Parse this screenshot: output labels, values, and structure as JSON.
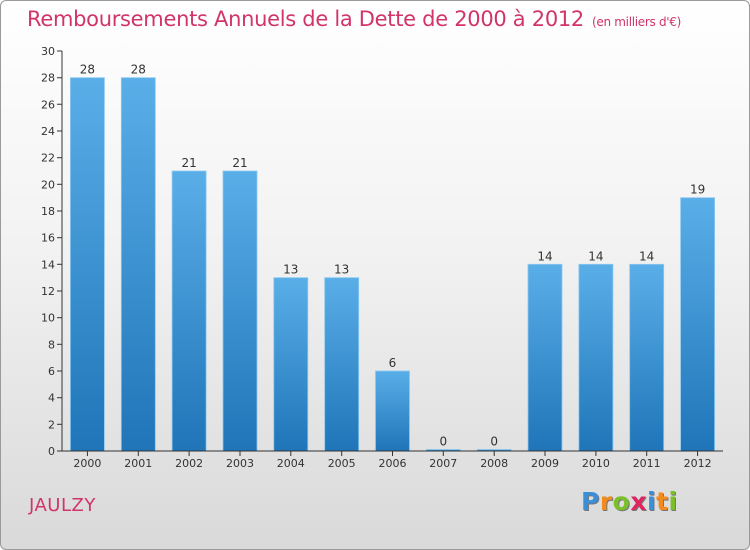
{
  "chart_data": {
    "type": "bar",
    "title": "Remboursements Annuels de la Dette de 2000 à 2012",
    "subtitle": "(en milliers d'€)",
    "categories": [
      "2000",
      "2001",
      "2002",
      "2003",
      "2004",
      "2005",
      "2006",
      "2007",
      "2008",
      "2009",
      "2010",
      "2011",
      "2012"
    ],
    "values": [
      28,
      28,
      21,
      21,
      13,
      13,
      6,
      0,
      0,
      14,
      14,
      14,
      19
    ],
    "data_labels": [
      "28",
      "28",
      "21",
      "21",
      "13",
      "13",
      "6",
      "0",
      "0",
      "14",
      "14",
      "14",
      "19"
    ],
    "ylim": [
      0,
      30
    ],
    "yticks": [
      0,
      2,
      4,
      6,
      8,
      10,
      12,
      14,
      16,
      18,
      20,
      22,
      24,
      26,
      28,
      30
    ],
    "xlabel": "",
    "ylabel": "",
    "grid": false,
    "bar_color_top": "#5aaee8",
    "bar_color_bottom": "#1f75b8"
  },
  "footer": {
    "commune": "JAULZY",
    "logo_letters": [
      {
        "ch": "P",
        "color": "#3a8fd8"
      },
      {
        "ch": "r",
        "color": "#f28a1c"
      },
      {
        "ch": "o",
        "color": "#7bbf2a"
      },
      {
        "ch": "x",
        "color": "#e0245e"
      },
      {
        "ch": "i",
        "color": "#3a8fd8"
      },
      {
        "ch": "t",
        "color": "#f28a1c"
      },
      {
        "ch": "i",
        "color": "#7bbf2a"
      }
    ]
  },
  "colors": {
    "title": "#d1346b",
    "axis": "#333333"
  }
}
